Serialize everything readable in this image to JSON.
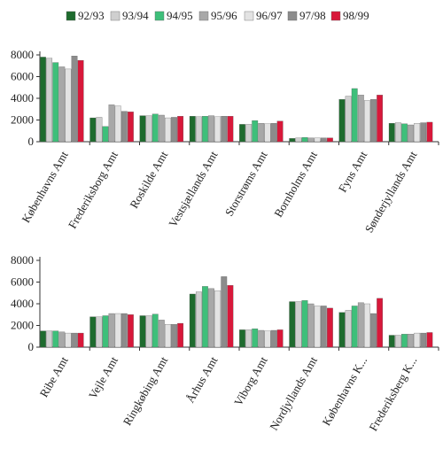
{
  "legend": {
    "placement": "top",
    "items": [
      {
        "label": "92/93",
        "color": "#1e6b2e"
      },
      {
        "label": "93/94",
        "color": "#cfcfcf"
      },
      {
        "label": "94/95",
        "color": "#3ebf7a"
      },
      {
        "label": "95/96",
        "color": "#a8a8a8"
      },
      {
        "label": "96/97",
        "color": "#e3e3e3"
      },
      {
        "label": "97/98",
        "color": "#8c8c8c"
      },
      {
        "label": "98/99",
        "color": "#d8183a"
      }
    ]
  },
  "chart_data": [
    {
      "type": "bar",
      "categories": [
        "Københavns Amt",
        "Frederiksborg Amt",
        "Roskilde Amt",
        "Vestsjællands Amt",
        "Storstrøms Amt",
        "Bornholms Amt",
        "Fyns Amt",
        "Sønderjyllands Amt"
      ],
      "series": [
        {
          "name": "92/93",
          "values": [
            7800,
            2200,
            2400,
            2350,
            1600,
            300,
            3900,
            1700
          ]
        },
        {
          "name": "93/94",
          "values": [
            7700,
            2250,
            2400,
            2300,
            1600,
            350,
            4200,
            1750
          ]
        },
        {
          "name": "94/95",
          "values": [
            7300,
            1400,
            2550,
            2350,
            1950,
            400,
            4900,
            1650
          ]
        },
        {
          "name": "95/96",
          "values": [
            6900,
            3400,
            2450,
            2400,
            1700,
            350,
            4300,
            1550
          ]
        },
        {
          "name": "96/97",
          "values": [
            6700,
            3300,
            2200,
            2300,
            1650,
            350,
            3800,
            1700
          ]
        },
        {
          "name": "97/98",
          "values": [
            7900,
            2800,
            2250,
            2350,
            1700,
            350,
            3900,
            1750
          ]
        },
        {
          "name": "98/99",
          "values": [
            7500,
            2750,
            2350,
            2350,
            1900,
            350,
            4300,
            1800
          ]
        }
      ],
      "ylim": [
        0,
        8000
      ],
      "yticks": [
        "0",
        "2000",
        "4000",
        "6000",
        "8000"
      ],
      "grid": false
    },
    {
      "type": "bar",
      "categories": [
        "Ribe Amt",
        "Vejle Amt",
        "Ringkøbing Amt",
        "Århus Amt",
        "Viborg Amt",
        "Nordjyllands Amt",
        "Københavns K...",
        "Frederiksberg K..."
      ],
      "series": [
        {
          "name": "92/93",
          "values": [
            1500,
            2800,
            2900,
            4900,
            1600,
            4200,
            3200,
            1100
          ]
        },
        {
          "name": "93/94",
          "values": [
            1500,
            2800,
            2900,
            5100,
            1600,
            4200,
            3400,
            1100
          ]
        },
        {
          "name": "94/95",
          "values": [
            1500,
            2900,
            3050,
            5600,
            1700,
            4300,
            3800,
            1200
          ]
        },
        {
          "name": "95/96",
          "values": [
            1400,
            3100,
            2500,
            5400,
            1550,
            4000,
            4100,
            1200
          ]
        },
        {
          "name": "96/97",
          "values": [
            1300,
            3100,
            2100,
            5200,
            1500,
            3800,
            4000,
            1300
          ]
        },
        {
          "name": "97/98",
          "values": [
            1300,
            3100,
            2100,
            6500,
            1550,
            3800,
            3100,
            1300
          ]
        },
        {
          "name": "98/99",
          "values": [
            1300,
            3000,
            2200,
            5700,
            1600,
            3600,
            4500,
            1350
          ]
        }
      ],
      "ylim": [
        0,
        8000
      ],
      "yticks": [
        "0",
        "2000",
        "4000",
        "6000",
        "8000"
      ],
      "grid": false
    }
  ]
}
